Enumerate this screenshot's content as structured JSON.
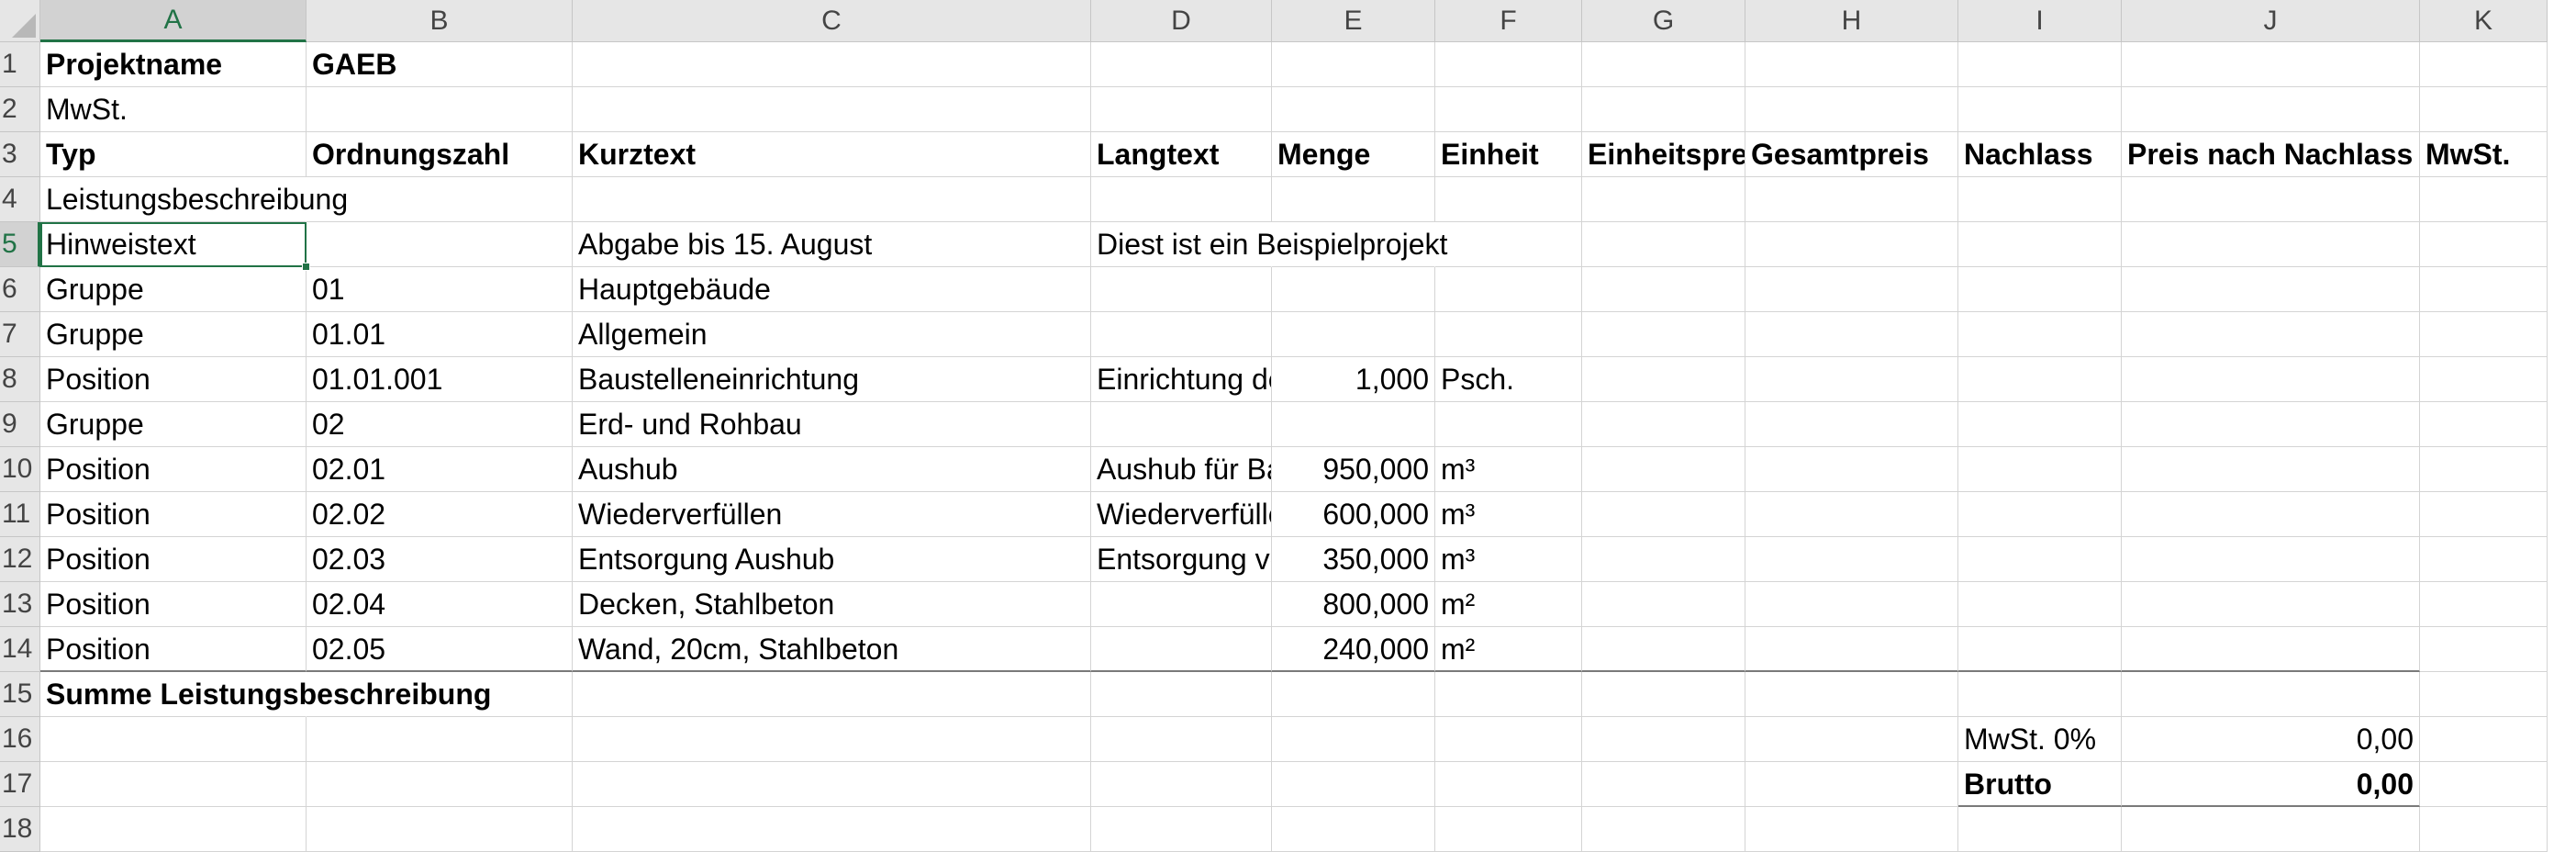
{
  "columns": [
    "A",
    "B",
    "C",
    "D",
    "E",
    "F",
    "G",
    "H",
    "I",
    "J",
    "K"
  ],
  "rows": [
    {
      "n": "1",
      "cells": {
        "A": "Projektname",
        "B": "GAEB"
      },
      "bold": [
        "A",
        "B"
      ]
    },
    {
      "n": "2",
      "cells": {
        "A": "MwSt."
      }
    },
    {
      "n": "3",
      "cells": {
        "A": "Typ",
        "B": "Ordnungszahl",
        "C": "Kurztext",
        "D": "Langtext",
        "E": "Menge",
        "F": "Einheit",
        "G": "Einheitspreis",
        "H": "Gesamtpreis",
        "I": "Nachlass",
        "J": "Preis nach Nachlass",
        "K": "MwSt."
      },
      "bold": [
        "A",
        "B",
        "C",
        "D",
        "E",
        "F",
        "G",
        "H",
        "I",
        "J",
        "K"
      ]
    },
    {
      "n": "4",
      "cells": {
        "A": "Leistungsbeschreibung"
      }
    },
    {
      "n": "5",
      "cells": {
        "A": "Hinweistext",
        "C": "Abgabe bis 15. August",
        "D": "Diest ist ein Beispielprojekt"
      }
    },
    {
      "n": "6",
      "cells": {
        "A": "Gruppe",
        "B": "01",
        "C": "Hauptgebäude"
      }
    },
    {
      "n": "7",
      "cells": {
        "A": "Gruppe",
        "B": "01.01",
        "C": "Allgemein"
      }
    },
    {
      "n": "8",
      "cells": {
        "A": "Position",
        "B": "01.01.001",
        "C": "Baustelleneinrichtung",
        "D": "Einrichtung der Baustelle",
        "E": "1,000",
        "F": "Psch."
      }
    },
    {
      "n": "9",
      "cells": {
        "A": "Gruppe",
        "B": "02",
        "C": "Erd- und Rohbau"
      }
    },
    {
      "n": "10",
      "cells": {
        "A": "Position",
        "B": "02.01",
        "C": "Aushub",
        "D": "Aushub für Baugrube",
        "E": "950,000",
        "F": "m³"
      }
    },
    {
      "n": "11",
      "cells": {
        "A": "Position",
        "B": "02.02",
        "C": "Wiederverfüllen",
        "D": "Wiederverfüllen",
        "E": "600,000",
        "F": "m³"
      }
    },
    {
      "n": "12",
      "cells": {
        "A": "Position",
        "B": "02.03",
        "C": "Entsorgung Aushub",
        "D": "Entsorgung von Aushub",
        "E": "350,000",
        "F": "m³"
      }
    },
    {
      "n": "13",
      "cells": {
        "A": "Position",
        "B": "02.04",
        "C": "Decken, Stahlbeton",
        "E": "800,000",
        "F": "m²"
      }
    },
    {
      "n": "14",
      "cells": {
        "A": "Position",
        "B": "02.05",
        "C": "Wand, 20cm, Stahlbeton",
        "E": "240,000",
        "F": "m²"
      }
    },
    {
      "n": "15",
      "cells": {
        "A": "Summe Leistungsbeschreibung"
      },
      "bold": [
        "A"
      ]
    },
    {
      "n": "16",
      "cells": {
        "I": "MwSt. 0%",
        "J": "0,00"
      }
    },
    {
      "n": "17",
      "cells": {
        "I": "Brutto",
        "J": "0,00"
      },
      "bold": [
        "I",
        "J"
      ]
    },
    {
      "n": "18",
      "cells": {}
    }
  ],
  "selected_cell": "A5",
  "colors": {
    "accent": "#217346",
    "header_bg": "#e6e6e6",
    "grid": "#d4d4d4"
  }
}
